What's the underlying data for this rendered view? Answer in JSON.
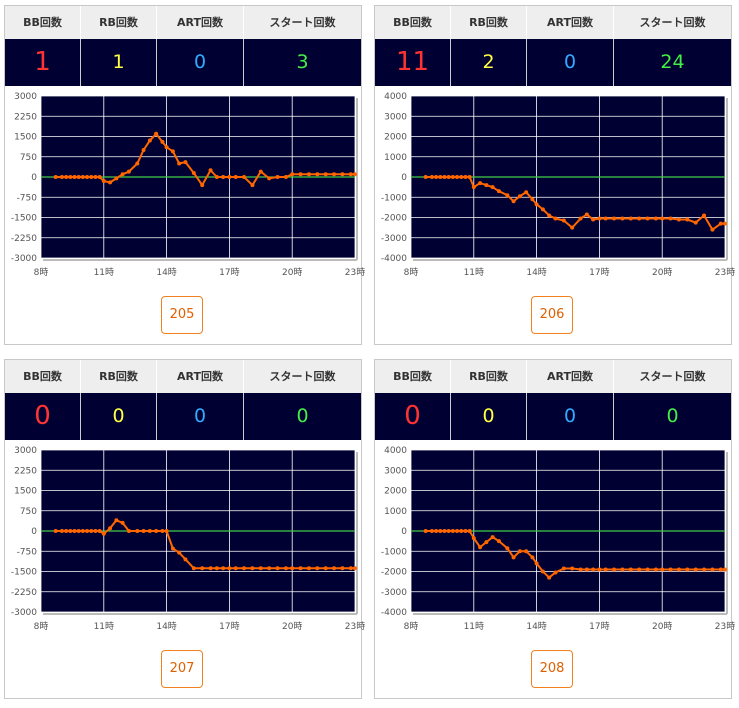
{
  "headers": {
    "bb": "BB回数",
    "rb": "RB回数",
    "art": "ART回数",
    "start": "スタート回数"
  },
  "colors": {
    "bb": "#ff3333",
    "rb": "#ffff44",
    "art": "#33aaff",
    "start": "#44ee44",
    "plot_bg": "#000033",
    "line": "#ff6600",
    "zero_line": "#44cc44",
    "grid": "#ffffff"
  },
  "machines": [
    {
      "number": "205",
      "bb": "1",
      "rb": "1",
      "art": "0",
      "start": "3"
    },
    {
      "number": "206",
      "bb": "11",
      "rb": "2",
      "art": "0",
      "start": "24"
    },
    {
      "number": "207",
      "bb": "0",
      "rb": "0",
      "art": "0",
      "start": "0"
    },
    {
      "number": "208",
      "bb": "0",
      "rb": "0",
      "art": "0",
      "start": "0"
    }
  ],
  "chart_data": [
    {
      "type": "line",
      "x_ticks": [
        "8時",
        "11時",
        "14時",
        "17時",
        "20時",
        "23時"
      ],
      "xlim": [
        8,
        23
      ],
      "ylim": [
        -3000,
        3000
      ],
      "y_ticks": [
        "3000",
        "2250",
        "1500",
        "750",
        "0",
        "-750",
        "-1500",
        "-2250",
        "-3000"
      ],
      "x": [
        8.7,
        9.0,
        9.2,
        9.4,
        9.6,
        9.8,
        10.0,
        10.2,
        10.4,
        10.6,
        10.8,
        11.0,
        11.3,
        11.6,
        11.9,
        12.2,
        12.6,
        12.9,
        13.2,
        13.5,
        13.8,
        14.0,
        14.3,
        14.6,
        14.9,
        15.3,
        15.7,
        16.1,
        16.4,
        16.7,
        17.0,
        17.3,
        17.7,
        18.1,
        18.5,
        18.9,
        19.3,
        19.7,
        20.0,
        20.4,
        20.8,
        21.2,
        21.6,
        22.0,
        22.4,
        22.8,
        23.0
      ],
      "series": [
        {
          "values": [
            0,
            0,
            0,
            0,
            0,
            0,
            0,
            0,
            0,
            0,
            0,
            -150,
            -200,
            -50,
            100,
            200,
            500,
            1000,
            1350,
            1600,
            1300,
            1100,
            950,
            500,
            550,
            150,
            -300,
            250,
            0,
            0,
            0,
            0,
            0,
            -300,
            200,
            -50,
            0,
            0,
            100,
            100,
            100,
            100,
            100,
            100,
            100,
            100,
            100
          ]
        }
      ]
    },
    {
      "type": "line",
      "x_ticks": [
        "8時",
        "11時",
        "14時",
        "17時",
        "20時",
        "23時"
      ],
      "xlim": [
        8,
        23
      ],
      "ylim": [
        -4000,
        4000
      ],
      "y_ticks": [
        "4000",
        "3000",
        "2000",
        "1000",
        "0",
        "-1000",
        "-2000",
        "-3000",
        "-4000"
      ],
      "x": [
        8.7,
        9.0,
        9.2,
        9.4,
        9.6,
        9.8,
        10.0,
        10.2,
        10.4,
        10.6,
        10.8,
        11.0,
        11.3,
        11.6,
        11.9,
        12.2,
        12.6,
        12.9,
        13.2,
        13.5,
        13.8,
        14.0,
        14.3,
        14.6,
        14.9,
        15.3,
        15.7,
        16.1,
        16.4,
        16.7,
        17.0,
        17.3,
        17.7,
        18.1,
        18.5,
        18.9,
        19.3,
        19.7,
        20.0,
        20.4,
        20.8,
        21.2,
        21.6,
        22.0,
        22.4,
        22.8,
        23.0
      ],
      "series": [
        {
          "values": [
            0,
            0,
            0,
            0,
            0,
            0,
            0,
            0,
            0,
            0,
            0,
            -500,
            -300,
            -400,
            -500,
            -700,
            -900,
            -1200,
            -950,
            -750,
            -1100,
            -1350,
            -1600,
            -1900,
            -2050,
            -2150,
            -2500,
            -2050,
            -1850,
            -2100,
            -2050,
            -2050,
            -2050,
            -2050,
            -2050,
            -2050,
            -2050,
            -2050,
            -2050,
            -2050,
            -2100,
            -2100,
            -2250,
            -1900,
            -2600,
            -2300,
            -2300
          ]
        }
      ]
    },
    {
      "type": "line",
      "x_ticks": [
        "8時",
        "11時",
        "14時",
        "17時",
        "20時",
        "23時"
      ],
      "xlim": [
        8,
        23
      ],
      "ylim": [
        -3000,
        3000
      ],
      "y_ticks": [
        "3000",
        "2250",
        "1500",
        "750",
        "0",
        "-750",
        "-1500",
        "-2250",
        "-3000"
      ],
      "x": [
        8.7,
        9.0,
        9.2,
        9.4,
        9.6,
        9.8,
        10.0,
        10.2,
        10.4,
        10.6,
        10.8,
        11.0,
        11.3,
        11.6,
        11.9,
        12.2,
        12.6,
        12.9,
        13.2,
        13.5,
        13.8,
        14.0,
        14.3,
        14.6,
        14.9,
        15.3,
        15.7,
        16.1,
        16.4,
        16.7,
        17.0,
        17.3,
        17.7,
        18.1,
        18.5,
        18.9,
        19.3,
        19.7,
        20.0,
        20.4,
        20.8,
        21.2,
        21.6,
        22.0,
        22.4,
        22.8,
        23.0
      ],
      "series": [
        {
          "values": [
            0,
            0,
            0,
            0,
            0,
            0,
            0,
            0,
            0,
            0,
            0,
            -100,
            100,
            400,
            300,
            0,
            0,
            0,
            0,
            0,
            0,
            0,
            -650,
            -800,
            -1050,
            -1380,
            -1380,
            -1380,
            -1380,
            -1380,
            -1380,
            -1380,
            -1380,
            -1380,
            -1380,
            -1380,
            -1380,
            -1380,
            -1380,
            -1380,
            -1380,
            -1380,
            -1380,
            -1380,
            -1380,
            -1380,
            -1380
          ]
        }
      ]
    },
    {
      "type": "line",
      "x_ticks": [
        "8時",
        "11時",
        "14時",
        "17時",
        "20時",
        "23時"
      ],
      "xlim": [
        8,
        23
      ],
      "ylim": [
        -4000,
        4000
      ],
      "y_ticks": [
        "4000",
        "3000",
        "2000",
        "1000",
        "0",
        "-1000",
        "-2000",
        "-3000",
        "-4000"
      ],
      "x": [
        8.7,
        9.0,
        9.2,
        9.4,
        9.6,
        9.8,
        10.0,
        10.2,
        10.4,
        10.6,
        10.8,
        11.0,
        11.3,
        11.6,
        11.9,
        12.2,
        12.6,
        12.9,
        13.2,
        13.5,
        13.8,
        14.0,
        14.3,
        14.6,
        14.9,
        15.3,
        15.7,
        16.1,
        16.4,
        16.7,
        17.0,
        17.3,
        17.7,
        18.1,
        18.5,
        18.9,
        19.3,
        19.7,
        20.0,
        20.4,
        20.8,
        21.2,
        21.6,
        22.0,
        22.4,
        22.8,
        23.0
      ],
      "series": [
        {
          "values": [
            0,
            0,
            0,
            0,
            0,
            0,
            0,
            0,
            0,
            0,
            0,
            -350,
            -800,
            -550,
            -300,
            -500,
            -850,
            -1300,
            -1000,
            -1000,
            -1300,
            -1600,
            -2000,
            -2300,
            -2050,
            -1850,
            -1850,
            -1900,
            -1900,
            -1900,
            -1900,
            -1900,
            -1900,
            -1900,
            -1900,
            -1900,
            -1900,
            -1900,
            -1900,
            -1900,
            -1900,
            -1900,
            -1900,
            -1900,
            -1900,
            -1900,
            -1900
          ]
        }
      ]
    }
  ]
}
